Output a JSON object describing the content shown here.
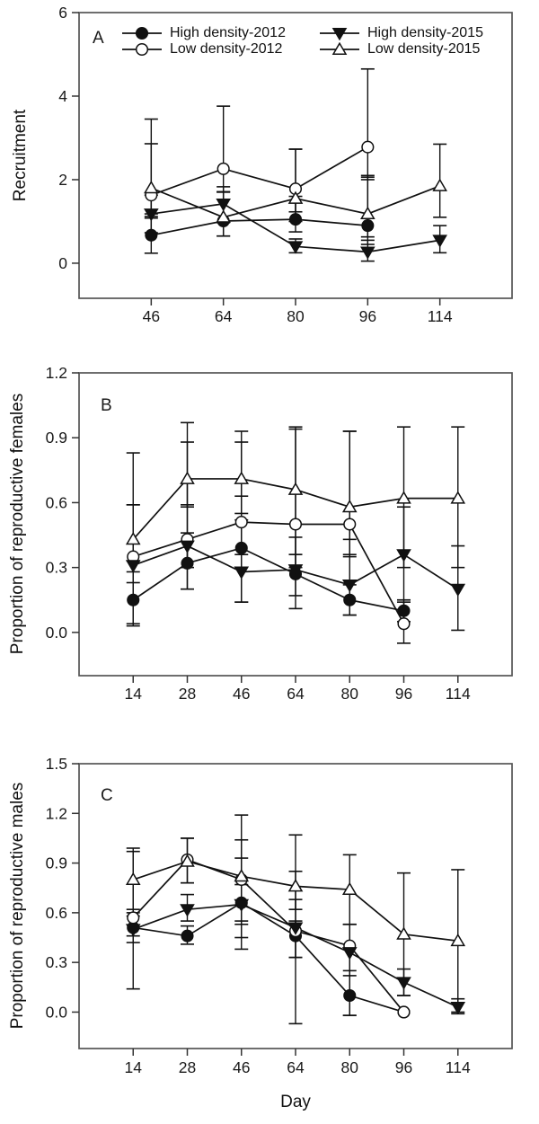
{
  "figure": {
    "background": "#ffffff",
    "ink_color": "#111111",
    "frame_color": "#555555"
  },
  "legend": {
    "items": [
      {
        "label": "High density-2012",
        "marker": "filled-circle"
      },
      {
        "label": "High density-2015",
        "marker": "filled-triangle-down"
      },
      {
        "label": "Low density-2012",
        "marker": "open-circle"
      },
      {
        "label": "Low density-2015",
        "marker": "open-triangle-up"
      }
    ]
  },
  "chart_data": [
    {
      "type": "line",
      "panel_label": "A",
      "ylabel": "Recruitment",
      "xlabel": "",
      "x_categories": [
        46,
        64,
        80,
        96,
        114
      ],
      "ylim": [
        -0.84,
        6
      ],
      "yticks": {
        "values": [
          0,
          2,
          4,
          6
        ],
        "labels": [
          "0",
          "2",
          "4",
          "6"
        ]
      },
      "grid": false,
      "legend_position": "top-left-inside",
      "series": [
        {
          "name": "High density-2012",
          "marker": "filled-circle",
          "x": [
            46,
            64,
            80,
            96
          ],
          "y": [
            0.67,
            1.01,
            1.05,
            0.9
          ],
          "err_up": [
            0.45,
            0.7,
            0.55,
            1.2
          ],
          "err_down": [
            0.43,
            0.36,
            0.3,
            0.45
          ]
        },
        {
          "name": "Low density-2012",
          "marker": "open-circle",
          "x": [
            46,
            64,
            80,
            96
          ],
          "y": [
            1.63,
            2.26,
            1.78,
            2.78
          ],
          "err_up": [
            1.23,
            1.5,
            0.95,
            1.87
          ],
          "err_down": [
            0.55,
            0.55,
            0.55,
            0.78
          ]
        },
        {
          "name": "High density-2015",
          "marker": "filled-triangle-down",
          "x": [
            46,
            64,
            80,
            96,
            114
          ],
          "y": [
            1.18,
            1.42,
            0.4,
            0.27,
            0.55
          ],
          "err_up": [
            0.45,
            0.41,
            0.18,
            0.28,
            0.35
          ],
          "err_down": [
            0.45,
            0.45,
            0.15,
            0.22,
            0.3
          ]
        },
        {
          "name": "Low density-2015",
          "marker": "open-triangle-up",
          "x": [
            46,
            64,
            80,
            96,
            114
          ],
          "y": [
            1.8,
            1.1,
            1.55,
            1.18,
            1.85
          ],
          "err_up": [
            1.65,
            0.6,
            1.18,
            0.88,
            1.0
          ],
          "err_down": [
            0.62,
            0.45,
            0.55,
            0.55,
            0.75
          ]
        }
      ]
    },
    {
      "type": "line",
      "panel_label": "B",
      "ylabel": "Proportion of reproductive females",
      "xlabel": "",
      "x_categories": [
        14,
        28,
        46,
        64,
        80,
        96,
        114
      ],
      "ylim": [
        -0.2,
        1.2
      ],
      "yticks": {
        "values": [
          0,
          0.3,
          0.6,
          0.9,
          1.2
        ],
        "labels": [
          "0.0",
          "0.3",
          "0.6",
          "0.9",
          "1.2"
        ]
      },
      "grid": false,
      "legend_position": "none",
      "series": [
        {
          "name": "High density-2012",
          "marker": "filled-circle",
          "x": [
            14,
            28,
            46,
            64,
            80,
            96
          ],
          "y": [
            0.15,
            0.32,
            0.39,
            0.27,
            0.15,
            0.1
          ],
          "err_up": [
            0.18,
            0.14,
            0.24,
            0.17,
            0.07,
            0.05
          ],
          "err_down": [
            0.11,
            0.12,
            0.25,
            0.16,
            0.07,
            0.05
          ]
        },
        {
          "name": "Low density-2012",
          "marker": "open-circle",
          "x": [
            14,
            28,
            46,
            64,
            80,
            96
          ],
          "y": [
            0.35,
            0.43,
            0.51,
            0.5,
            0.5,
            0.04
          ],
          "err_up": [
            0.24,
            0.45,
            0.37,
            0.44,
            0.43,
            0.1
          ],
          "err_down": [
            0.12,
            0.13,
            0.15,
            0.2,
            0.14,
            0.09
          ]
        },
        {
          "name": "High density-2015",
          "marker": "filled-triangle-down",
          "x": [
            14,
            28,
            46,
            64,
            80,
            96,
            114
          ],
          "y": [
            0.31,
            0.4,
            0.28,
            0.29,
            0.22,
            0.36,
            0.2
          ],
          "err_up": [
            0.28,
            0.19,
            0.24,
            0.07,
            0.21,
            0.22,
            0.2
          ],
          "err_down": [
            0.28,
            0.2,
            0.14,
            0.12,
            0.14,
            0.21,
            0.19
          ]
        },
        {
          "name": "Low density-2015",
          "marker": "open-triangle-up",
          "x": [
            14,
            28,
            46,
            64,
            80,
            96,
            114
          ],
          "y": [
            0.43,
            0.71,
            0.71,
            0.66,
            0.58,
            0.62,
            0.62
          ],
          "err_up": [
            0.4,
            0.26,
            0.22,
            0.29,
            0.35,
            0.33,
            0.33
          ],
          "err_down": [
            0.15,
            0.13,
            0.16,
            0.3,
            0.23,
            0.32,
            0.32
          ]
        }
      ]
    },
    {
      "type": "line",
      "panel_label": "C",
      "ylabel": "Proportion of reproductive males",
      "xlabel": "Day",
      "x_categories": [
        14,
        28,
        46,
        64,
        80,
        96,
        114
      ],
      "ylim": [
        -0.22,
        1.5
      ],
      "yticks": {
        "values": [
          0,
          0.3,
          0.6,
          0.9,
          1.2,
          1.5
        ],
        "labels": [
          "0.0",
          "0.3",
          "0.6",
          "0.9",
          "1.2",
          "1.5"
        ]
      },
      "grid": false,
      "legend_position": "none",
      "series": [
        {
          "name": "High density-2012",
          "marker": "filled-circle",
          "x": [
            14,
            28,
            46,
            64,
            80,
            96
          ],
          "y": [
            0.51,
            0.46,
            0.66,
            0.46,
            0.1,
            0.0
          ],
          "err_up": [
            0.11,
            0.06,
            0.27,
            0.09,
            0.15,
            0.0
          ],
          "err_down": [
            0.05,
            0.05,
            0.28,
            0.13,
            0.12,
            0.0
          ]
        },
        {
          "name": "Low density-2012",
          "marker": "open-circle",
          "x": [
            14,
            28,
            46,
            64,
            80,
            96
          ],
          "y": [
            0.57,
            0.92,
            0.8,
            0.49,
            0.4,
            0.0
          ],
          "err_up": [
            0.42,
            0.13,
            0.39,
            0.58,
            0.13,
            0.0
          ],
          "err_down": [
            0.43,
            0.14,
            0.25,
            0.56,
            0.42,
            0.0
          ]
        },
        {
          "name": "High density-2015",
          "marker": "filled-triangle-down",
          "x": [
            14,
            28,
            46,
            64,
            80,
            96,
            114
          ],
          "y": [
            0.5,
            0.62,
            0.65,
            0.51,
            0.36,
            0.18,
            0.03
          ],
          "err_up": [
            0.08,
            0.09,
            0.12,
            0.17,
            0.17,
            0.08,
            0.05
          ],
          "err_down": [
            0.08,
            0.07,
            0.12,
            0.18,
            0.14,
            0.08,
            0.04
          ]
        },
        {
          "name": "Low density-2015",
          "marker": "open-triangle-up",
          "x": [
            14,
            28,
            46,
            64,
            80,
            96,
            114
          ],
          "y": [
            0.8,
            0.91,
            0.82,
            0.76,
            0.74,
            0.47,
            0.43
          ],
          "err_up": [
            0.17,
            0.14,
            0.22,
            0.09,
            0.21,
            0.37,
            0.43
          ],
          "err_down": [
            0.2,
            0.13,
            0.37,
            0.14,
            0.21,
            0.37,
            0.43
          ]
        }
      ]
    }
  ]
}
